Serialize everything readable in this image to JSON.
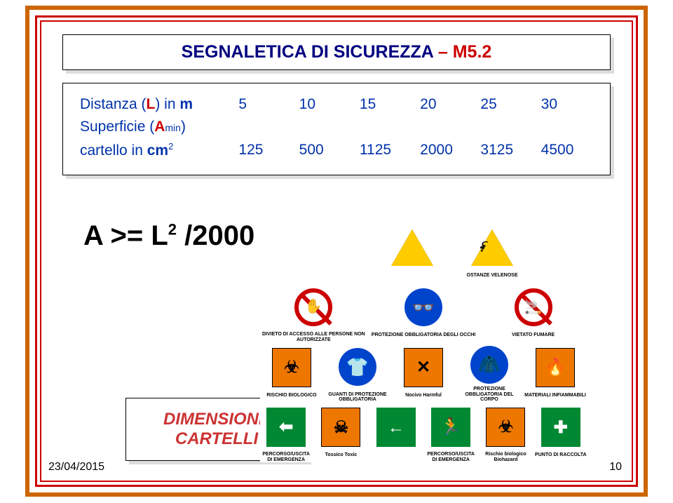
{
  "frame_color": "#cc6600",
  "title": {
    "part_a": "SEGNALETICA DI SICUREZZA",
    "part_b": " – M5.2",
    "color_a": "#000080",
    "color_b": "#cc0000"
  },
  "table": {
    "row1_label_pre": "Distanza (",
    "row1_letter": "L",
    "row1_label_post": ") in ",
    "row1_unit": "m",
    "row1_vals": [
      "5",
      "10",
      "15",
      "20",
      "25",
      "30"
    ],
    "row2_label_pre": "Superficie (",
    "row2_letter": "A",
    "row2_sub": "min",
    "row2_label_post": ")",
    "row3_label_pre": "cartello in ",
    "row3_unit": "cm",
    "row3_sup": "2",
    "row3_vals": [
      "125",
      "500",
      "1125",
      "2000",
      "3125",
      "4500"
    ],
    "text_color": "#0033aa"
  },
  "formula": {
    "text": "A >= L",
    "sup": "2",
    "tail": " /2000"
  },
  "footer": {
    "line1": "DIMENSIONE",
    "line2": "CARTELLI",
    "color": "#cc3333"
  },
  "date": "23/04/2015",
  "page_number": "10",
  "signs": {
    "row1": [
      {
        "type": "tri",
        "glyph": "",
        "caption": ""
      },
      {
        "type": "tri",
        "glyph": "☠",
        "caption": "OSTANZE VELENOSE"
      }
    ],
    "row2": [
      {
        "type": "red-circle",
        "glyph": "✋",
        "caption": "DIVIETO DI ACCESSO ALLE PERSONE NON AUTORIZZATE"
      },
      {
        "type": "blue-circle",
        "glyph": "👓",
        "caption": "PROTEZIONE OBBLIGATORIA DEGLI OCCHI"
      },
      {
        "type": "red-circle",
        "glyph": "🚬",
        "caption": "VIETATO FUMARE"
      }
    ],
    "row3": [
      {
        "type": "orange-sq",
        "glyph": "☣",
        "caption": "RISCHIO BIOLOGICO"
      },
      {
        "type": "blue-circle",
        "glyph": "👕",
        "caption": "GUANTI DI PROTEZIONE OBBLIGATORIA"
      },
      {
        "type": "orange-sq",
        "glyph": "✕",
        "caption": "Nocivo Harmful"
      },
      {
        "type": "blue-circle",
        "glyph": "🧥",
        "caption": "PROTEZIONE OBBLIGATORIA DEL CORPO"
      },
      {
        "type": "orange-sq",
        "glyph": "🔥",
        "caption": "MATERIALI INFIAMMABILI"
      }
    ],
    "row4": [
      {
        "type": "green-sq",
        "glyph": "⬅",
        "caption": "PERCORSO/USCITA DI EMERGENZA"
      },
      {
        "type": "orange-sq",
        "glyph": "☠",
        "caption": "Tossico Toxic"
      },
      {
        "type": "green-sq",
        "glyph": "←",
        "caption": ""
      },
      {
        "type": "green-sq",
        "glyph": "🏃",
        "caption": "PERCORSO/USCITA DI EMERGENZA"
      },
      {
        "type": "orange-sq",
        "glyph": "☣",
        "caption": "Rischio biologico Biohazard"
      },
      {
        "type": "green-sq",
        "glyph": "✚",
        "caption": "PUNTO DI RACCOLTA"
      }
    ]
  }
}
